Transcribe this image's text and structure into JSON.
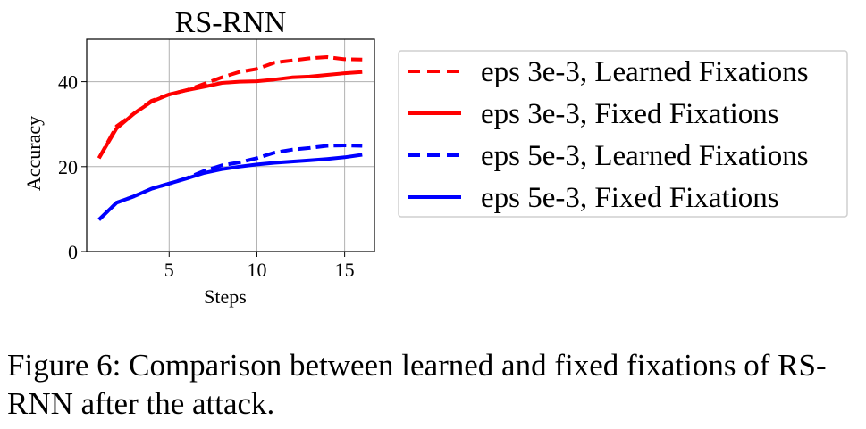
{
  "chart_data": {
    "type": "line",
    "title": "RS-RNN",
    "xlabel": "Steps",
    "ylabel": "Accuracy",
    "xlim": [
      0.3,
      16.7
    ],
    "ylim": [
      0,
      50
    ],
    "xticks": [
      5,
      10,
      15
    ],
    "yticks": [
      0,
      20,
      40
    ],
    "grid": true,
    "legend_position": "right-outside",
    "x": [
      1,
      2,
      3,
      4,
      5,
      6,
      7,
      8,
      9,
      10,
      11,
      12,
      13,
      14,
      15,
      16
    ],
    "series": [
      {
        "name": "eps 3e-3, Learned Fixations",
        "color": "#ff0000",
        "style": "dashed",
        "values": [
          22,
          29.5,
          32.5,
          35.5,
          37,
          38,
          39.5,
          41,
          42.3,
          43,
          44.5,
          45,
          45.5,
          45.8,
          45.3,
          45.2
        ]
      },
      {
        "name": "eps 3e-3, Fixed Fixations",
        "color": "#ff0000",
        "style": "solid",
        "values": [
          22,
          29,
          32.5,
          35.3,
          37,
          38,
          38.8,
          39.7,
          40,
          40.1,
          40.5,
          41,
          41.2,
          41.6,
          42,
          42.3
        ]
      },
      {
        "name": "eps 5e-3, Learned Fixations",
        "color": "#0000ff",
        "style": "dashed",
        "values": [
          7.5,
          11.5,
          13,
          14.8,
          16,
          17.3,
          19,
          20.3,
          21,
          22,
          23.3,
          24,
          24.4,
          24.9,
          25,
          24.9
        ]
      },
      {
        "name": "eps 5e-3, Fixed Fixations",
        "color": "#0000ff",
        "style": "solid",
        "values": [
          7.5,
          11.5,
          13,
          14.8,
          16,
          17.2,
          18.5,
          19.4,
          20,
          20.5,
          20.9,
          21.2,
          21.5,
          21.8,
          22.2,
          22.8
        ]
      }
    ]
  },
  "caption": "Figure 6: Comparison between learned and fixed fixations of RS-RNN after the attack."
}
